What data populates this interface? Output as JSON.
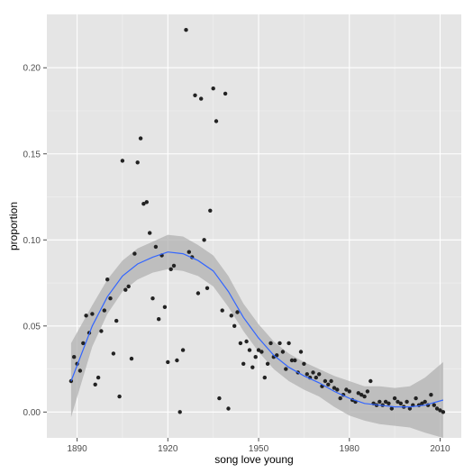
{
  "chart_data": {
    "type": "scatter",
    "title": "",
    "xlabel": "song love young",
    "ylabel": "proportion",
    "xlim": [
      1880,
      2017
    ],
    "ylim": [
      -0.015,
      0.231
    ],
    "xticks": [
      1890,
      1920,
      1950,
      1980,
      2010
    ],
    "yticks": [
      0.0,
      0.05,
      0.1,
      0.15,
      0.2
    ],
    "ytick_labels": [
      "0.00",
      "0.05",
      "0.10",
      "0.15",
      "0.20"
    ],
    "grid": true,
    "legend": "none",
    "colors": {
      "panel": "#e5e5e5",
      "grid": "#ffffff",
      "points": "#222222",
      "smooth_line": "#3366ff",
      "ribbon": "#b0b0b0"
    },
    "points": [
      [
        1888,
        0.018
      ],
      [
        1889,
        0.032
      ],
      [
        1890,
        0.028
      ],
      [
        1891,
        0.024
      ],
      [
        1892,
        0.04
      ],
      [
        1893,
        0.056
      ],
      [
        1894,
        0.046
      ],
      [
        1895,
        0.057
      ],
      [
        1896,
        0.016
      ],
      [
        1897,
        0.02
      ],
      [
        1898,
        0.047
      ],
      [
        1899,
        0.059
      ],
      [
        1900,
        0.077
      ],
      [
        1901,
        0.066
      ],
      [
        1902,
        0.034
      ],
      [
        1903,
        0.053
      ],
      [
        1904,
        0.009
      ],
      [
        1905,
        0.146
      ],
      [
        1906,
        0.071
      ],
      [
        1907,
        0.073
      ],
      [
        1908,
        0.031
      ],
      [
        1909,
        0.092
      ],
      [
        1910,
        0.145
      ],
      [
        1911,
        0.159
      ],
      [
        1912,
        0.121
      ],
      [
        1913,
        0.122
      ],
      [
        1914,
        0.104
      ],
      [
        1915,
        0.066
      ],
      [
        1916,
        0.096
      ],
      [
        1917,
        0.054
      ],
      [
        1918,
        0.091
      ],
      [
        1919,
        0.061
      ],
      [
        1920,
        0.029
      ],
      [
        1921,
        0.083
      ],
      [
        1922,
        0.085
      ],
      [
        1923,
        0.03
      ],
      [
        1924,
        0.0
      ],
      [
        1925,
        0.036
      ],
      [
        1926,
        0.222
      ],
      [
        1927,
        0.093
      ],
      [
        1928,
        0.09
      ],
      [
        1929,
        0.184
      ],
      [
        1930,
        0.069
      ],
      [
        1931,
        0.182
      ],
      [
        1932,
        0.1
      ],
      [
        1933,
        0.072
      ],
      [
        1934,
        0.117
      ],
      [
        1935,
        0.188
      ],
      [
        1936,
        0.169
      ],
      [
        1937,
        0.008
      ],
      [
        1938,
        0.059
      ],
      [
        1939,
        0.185
      ],
      [
        1940,
        0.002
      ],
      [
        1941,
        0.056
      ],
      [
        1942,
        0.05
      ],
      [
        1943,
        0.058
      ],
      [
        1944,
        0.04
      ],
      [
        1945,
        0.028
      ],
      [
        1946,
        0.041
      ],
      [
        1947,
        0.036
      ],
      [
        1948,
        0.026
      ],
      [
        1949,
        0.032
      ],
      [
        1950,
        0.036
      ],
      [
        1951,
        0.035
      ],
      [
        1952,
        0.02
      ],
      [
        1953,
        0.028
      ],
      [
        1954,
        0.04
      ],
      [
        1955,
        0.032
      ],
      [
        1956,
        0.033
      ],
      [
        1957,
        0.04
      ],
      [
        1958,
        0.035
      ],
      [
        1959,
        0.025
      ],
      [
        1960,
        0.04
      ],
      [
        1961,
        0.03
      ],
      [
        1962,
        0.03
      ],
      [
        1963,
        0.023
      ],
      [
        1964,
        0.035
      ],
      [
        1965,
        0.028
      ],
      [
        1966,
        0.022
      ],
      [
        1967,
        0.02
      ],
      [
        1968,
        0.023
      ],
      [
        1969,
        0.02
      ],
      [
        1970,
        0.022
      ],
      [
        1971,
        0.015
      ],
      [
        1972,
        0.018
      ],
      [
        1973,
        0.016
      ],
      [
        1974,
        0.018
      ],
      [
        1975,
        0.014
      ],
      [
        1976,
        0.013
      ],
      [
        1977,
        0.008
      ],
      [
        1978,
        0.01
      ],
      [
        1979,
        0.013
      ],
      [
        1980,
        0.012
      ],
      [
        1981,
        0.007
      ],
      [
        1982,
        0.006
      ],
      [
        1983,
        0.011
      ],
      [
        1984,
        0.01
      ],
      [
        1985,
        0.009
      ],
      [
        1986,
        0.012
      ],
      [
        1987,
        0.018
      ],
      [
        1988,
        0.005
      ],
      [
        1989,
        0.004
      ],
      [
        1990,
        0.006
      ],
      [
        1991,
        0.004
      ],
      [
        1992,
        0.006
      ],
      [
        1993,
        0.005
      ],
      [
        1994,
        0.002
      ],
      [
        1995,
        0.008
      ],
      [
        1996,
        0.006
      ],
      [
        1997,
        0.005
      ],
      [
        1998,
        0.003
      ],
      [
        1999,
        0.006
      ],
      [
        2000,
        0.002
      ],
      [
        2001,
        0.004
      ],
      [
        2002,
        0.008
      ],
      [
        2003,
        0.004
      ],
      [
        2004,
        0.005
      ],
      [
        2005,
        0.006
      ],
      [
        2006,
        0.004
      ],
      [
        2007,
        0.01
      ],
      [
        2008,
        0.004
      ],
      [
        2009,
        0.002
      ],
      [
        2010,
        0.001
      ],
      [
        2011,
        0.0
      ]
    ],
    "smooth": {
      "x": [
        1888,
        1895,
        1900,
        1905,
        1910,
        1915,
        1920,
        1925,
        1930,
        1935,
        1940,
        1945,
        1950,
        1955,
        1960,
        1965,
        1970,
        1975,
        1980,
        1985,
        1990,
        1995,
        2000,
        2005,
        2011
      ],
      "y": [
        0.018,
        0.05,
        0.067,
        0.079,
        0.086,
        0.09,
        0.093,
        0.092,
        0.088,
        0.082,
        0.07,
        0.055,
        0.043,
        0.033,
        0.026,
        0.021,
        0.017,
        0.012,
        0.008,
        0.005,
        0.004,
        0.003,
        0.003,
        0.004,
        0.007
      ],
      "lower": [
        -0.003,
        0.038,
        0.057,
        0.07,
        0.077,
        0.081,
        0.083,
        0.082,
        0.079,
        0.073,
        0.061,
        0.047,
        0.035,
        0.025,
        0.018,
        0.013,
        0.009,
        0.003,
        -0.002,
        -0.005,
        -0.007,
        -0.008,
        -0.009,
        -0.012,
        -0.015
      ],
      "upper": [
        0.04,
        0.062,
        0.077,
        0.088,
        0.095,
        0.099,
        0.103,
        0.102,
        0.097,
        0.091,
        0.079,
        0.063,
        0.051,
        0.041,
        0.034,
        0.029,
        0.025,
        0.021,
        0.018,
        0.015,
        0.015,
        0.014,
        0.015,
        0.02,
        0.029
      ]
    }
  }
}
